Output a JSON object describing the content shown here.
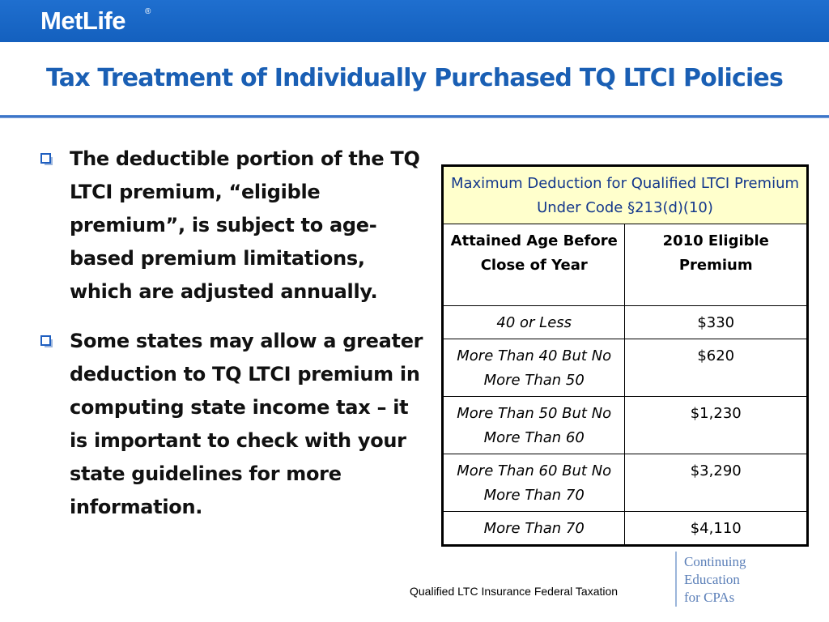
{
  "brand": {
    "logo_text": "MetLife",
    "registered_mark": "®",
    "header_color": "#1a66c8"
  },
  "slide": {
    "title": "Tax Treatment of Individually Purchased TQ LTCI Policies",
    "title_color": "#1a5fb4"
  },
  "bullets": [
    {
      "icon": "hollow-square-bullet",
      "text": "The deductible portion of the TQ LTCI premium, “eligible premium”, is subject to age-based premium limitations, which are adjusted annually."
    },
    {
      "icon": "hollow-square-bullet",
      "text": "Some states may allow a greater deduction to TQ LTCI premium in computing state income tax – it is important to check with your state guidelines for more information."
    }
  ],
  "table": {
    "caption": "Maximum Deduction for Qualified LTCI Premium Under Code §213(d)(10)",
    "caption_background": "#ffffcc",
    "headers": [
      "Attained Age Before Close of Year",
      "2010 Eligible Premium"
    ],
    "rows": [
      {
        "age": "40 or Less",
        "premium": "$330"
      },
      {
        "age": "More Than 40 But No More Than 50",
        "premium": "$620"
      },
      {
        "age": "More Than 50 But No More Than 60",
        "premium": "$1,230"
      },
      {
        "age": "More Than 60 But No More Than 70",
        "premium": "$3,290"
      },
      {
        "age": "More Than 70",
        "premium": "$4,110"
      }
    ]
  },
  "footer": {
    "text": "Qualified LTC Insurance Federal Taxation",
    "cpa_lines": [
      "Continuing",
      "Education",
      "for CPAs"
    ],
    "cpa_color": "#5b7fb8"
  }
}
